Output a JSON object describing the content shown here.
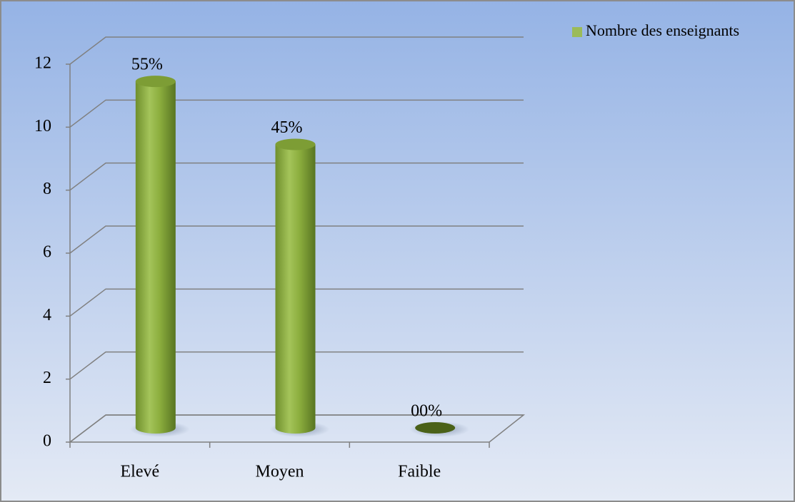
{
  "chart_data": {
    "type": "bar3d",
    "categories": [
      "Elevé",
      "Moyen",
      "Faible"
    ],
    "series": [
      {
        "name": "Nombre des enseignants",
        "color": "#9bbb59",
        "values": [
          11,
          9,
          0
        ],
        "value_labels": [
          "55%",
          "45%",
          "00%"
        ]
      }
    ],
    "ylim": [
      0,
      12
    ],
    "yticks": [
      0,
      2,
      4,
      6,
      8,
      10,
      12
    ],
    "grid": true,
    "legend": "top-right"
  }
}
